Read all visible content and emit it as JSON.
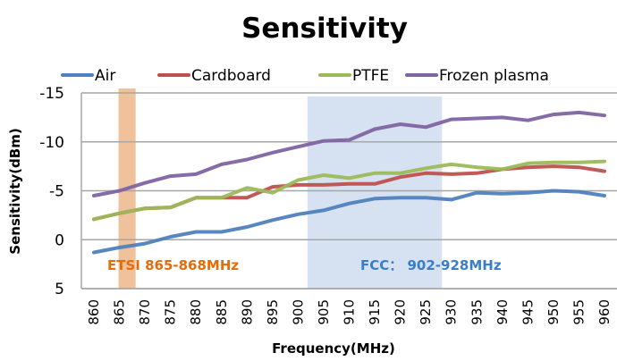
{
  "chart_data": {
    "type": "line",
    "title": "Sensitivity",
    "xlabel": "Frequency(MHz)",
    "ylabel": "Sensitivity(dBm)",
    "y_reversed": true,
    "ylim": [
      5,
      -15
    ],
    "yticks": [
      -15,
      -10,
      -5,
      0,
      5
    ],
    "ytick_labels": [
      "-15",
      "-10",
      "-5",
      "0",
      "5"
    ],
    "grid": "horizontal",
    "legend_position": "top",
    "categories": [
      "860",
      "865",
      "870",
      "875",
      "880",
      "885",
      "890",
      "895",
      "900",
      "905",
      "910",
      "915",
      "920",
      "925",
      "930",
      "935",
      "940",
      "945",
      "950",
      "955",
      "960"
    ],
    "series": [
      {
        "name": "Air",
        "color": "#4F81BD",
        "values": [
          1.3,
          0.8,
          0.4,
          -0.3,
          -0.8,
          -0.8,
          -1.3,
          -2.0,
          -2.6,
          -3.0,
          -3.7,
          -4.2,
          -4.3,
          -4.3,
          -4.1,
          -4.8,
          -4.7,
          -4.8,
          -5.0,
          -4.9,
          -4.5
        ]
      },
      {
        "name": "Cardboard",
        "color": "#C0504D",
        "values": [
          -2.1,
          -2.7,
          -3.2,
          -3.3,
          -4.3,
          -4.3,
          -4.3,
          -5.4,
          -5.6,
          -5.6,
          -5.7,
          -5.7,
          -6.4,
          -6.8,
          -6.7,
          -6.8,
          -7.2,
          -7.4,
          -7.5,
          -7.4,
          -7.0
        ]
      },
      {
        "name": "PTFE",
        "color": "#9BBB59",
        "values": [
          -2.1,
          -2.7,
          -3.2,
          -3.3,
          -4.3,
          -4.3,
          -5.3,
          -4.8,
          -6.1,
          -6.6,
          -6.3,
          -6.8,
          -6.8,
          -7.3,
          -7.7,
          -7.4,
          -7.2,
          -7.8,
          -7.9,
          -7.9,
          -8.0
        ]
      },
      {
        "name": "Frozen plasma",
        "color": "#8064A2",
        "values": [
          -4.5,
          -5.0,
          -5.8,
          -6.5,
          -6.7,
          -7.7,
          -8.2,
          -8.9,
          -9.5,
          -10.1,
          -10.2,
          -11.3,
          -11.8,
          -11.5,
          -12.3,
          -12.4,
          -12.5,
          -12.2,
          -12.8,
          -13.0,
          -12.7
        ]
      }
    ],
    "annotations": [
      {
        "label": "ETSI 865-868MHz",
        "type": "band",
        "from": "865",
        "to": "868",
        "fill": "#F0C29C",
        "text_color": "#E46C0A"
      },
      {
        "label": "FCC： 902-928MHz",
        "type": "band",
        "from": "902",
        "to": "928",
        "fill": "#D6E1F1",
        "text_color": "#3A7DC9"
      }
    ]
  }
}
